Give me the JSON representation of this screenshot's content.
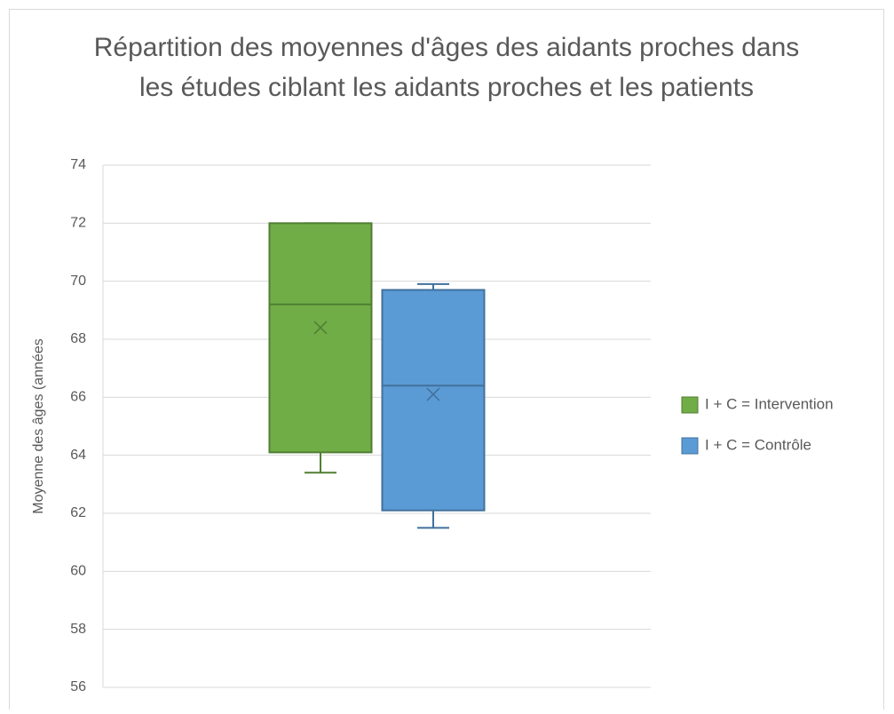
{
  "chart_data": {
    "type": "box",
    "title": [
      "Répartition des moyennes d'âges des aidants proches dans",
      "les études ciblant les aidants proches et les patients"
    ],
    "y_label": "Moyenne des âges (années",
    "ylim": [
      56,
      74
    ],
    "yticks": [
      56,
      58,
      60,
      62,
      64,
      66,
      68,
      70,
      72,
      74
    ],
    "grid": true,
    "legend": "right",
    "series": [
      {
        "name": "I + C = Intervention",
        "color": "#70ad47",
        "stroke": "#507e32",
        "min": 63.4,
        "q1": 64.1,
        "median": 69.2,
        "q3": 72,
        "max": 72,
        "mean": 68.4
      },
      {
        "name": "I + C = Contrôle",
        "color": "#5b9bd5",
        "stroke": "#41719c",
        "min": 61.5,
        "q1": 62.1,
        "median": 66.4,
        "q3": 69.7,
        "max": 69.9,
        "mean": 66.1
      }
    ]
  }
}
